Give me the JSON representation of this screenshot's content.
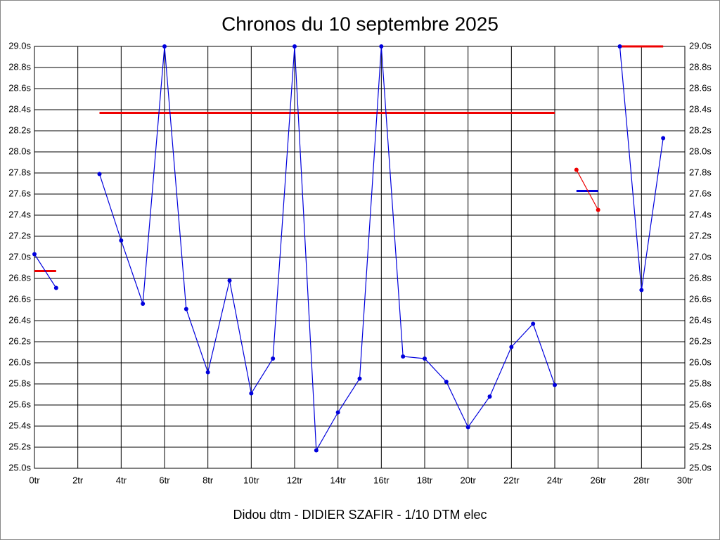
{
  "chart_data": {
    "type": "line",
    "title": "Chronos du 10 septembre 2025",
    "footer": "Didou dtm - DIDIER SZAFIR - 1/10 DTM elec",
    "x": [
      0,
      1,
      2,
      3,
      4,
      5,
      6,
      7,
      8,
      9,
      10,
      11,
      12,
      13,
      14,
      15,
      16,
      17,
      18,
      19,
      20,
      21,
      22,
      23,
      24,
      25,
      26,
      27,
      28,
      29
    ],
    "series": [
      {
        "color": "#0000dd",
        "values": [
          27.03,
          26.71,
          null,
          27.79,
          27.16,
          26.56,
          29.0,
          26.51,
          25.91,
          26.78,
          25.71,
          26.04,
          29.0,
          25.17,
          25.53,
          25.85,
          29.0,
          26.06,
          26.04,
          25.82,
          25.39,
          25.68,
          26.15,
          26.37,
          25.79,
          null,
          null,
          29.0,
          26.69,
          28.13
        ]
      },
      {
        "color": "#ee0000",
        "values": [
          null,
          null,
          null,
          null,
          null,
          null,
          null,
          null,
          null,
          null,
          null,
          null,
          null,
          null,
          null,
          null,
          null,
          null,
          null,
          null,
          null,
          null,
          null,
          null,
          null,
          27.83,
          27.45,
          null,
          null,
          null
        ]
      }
    ],
    "segments": [
      {
        "color": "#ee0000",
        "start": 0,
        "end": 1,
        "value": 26.87
      },
      {
        "color": "#ee0000",
        "start": 3,
        "end": 24,
        "value": 28.37
      },
      {
        "color": "#0000dd",
        "start": 25,
        "end": 26,
        "value": 27.63
      },
      {
        "color": "#ee0000",
        "start": 27,
        "end": 29,
        "value": 29.0
      }
    ],
    "xlim": [
      0,
      30
    ],
    "xticks": [
      {
        "value": 0,
        "label": "0tr"
      },
      {
        "value": 2,
        "label": "2tr"
      },
      {
        "value": 4,
        "label": "4tr"
      },
      {
        "value": 6,
        "label": "6tr"
      },
      {
        "value": 8,
        "label": "8tr"
      },
      {
        "value": 10,
        "label": "10tr"
      },
      {
        "value": 12,
        "label": "12tr"
      },
      {
        "value": 14,
        "label": "14tr"
      },
      {
        "value": 16,
        "label": "16tr"
      },
      {
        "value": 18,
        "label": "18tr"
      },
      {
        "value": 20,
        "label": "20tr"
      },
      {
        "value": 22,
        "label": "22tr"
      },
      {
        "value": 24,
        "label": "24tr"
      },
      {
        "value": 26,
        "label": "26tr"
      },
      {
        "value": 28,
        "label": "28tr"
      },
      {
        "value": 30,
        "label": "30tr"
      }
    ],
    "ylim": [
      25.0,
      29.0
    ],
    "yticks": [
      {
        "value": 25.0,
        "label": "25.0s"
      },
      {
        "value": 25.2,
        "label": "25.2s"
      },
      {
        "value": 25.4,
        "label": "25.4s"
      },
      {
        "value": 25.6,
        "label": "25.6s"
      },
      {
        "value": 25.8,
        "label": "25.8s"
      },
      {
        "value": 26.0,
        "label": "26.0s"
      },
      {
        "value": 26.2,
        "label": "26.2s"
      },
      {
        "value": 26.4,
        "label": "26.4s"
      },
      {
        "value": 26.6,
        "label": "26.6s"
      },
      {
        "value": 26.8,
        "label": "26.8s"
      },
      {
        "value": 27.0,
        "label": "27.0s"
      },
      {
        "value": 27.2,
        "label": "27.2s"
      },
      {
        "value": 27.4,
        "label": "27.4s"
      },
      {
        "value": 27.6,
        "label": "27.6s"
      },
      {
        "value": 27.8,
        "label": "27.8s"
      },
      {
        "value": 28.0,
        "label": "28.0s"
      },
      {
        "value": 28.2,
        "label": "28.2s"
      },
      {
        "value": 28.4,
        "label": "28.4s"
      },
      {
        "value": 28.6,
        "label": "28.6s"
      },
      {
        "value": 28.8,
        "label": "28.8s"
      },
      {
        "value": 29.0,
        "label": "29.0s"
      }
    ],
    "grid": true
  }
}
